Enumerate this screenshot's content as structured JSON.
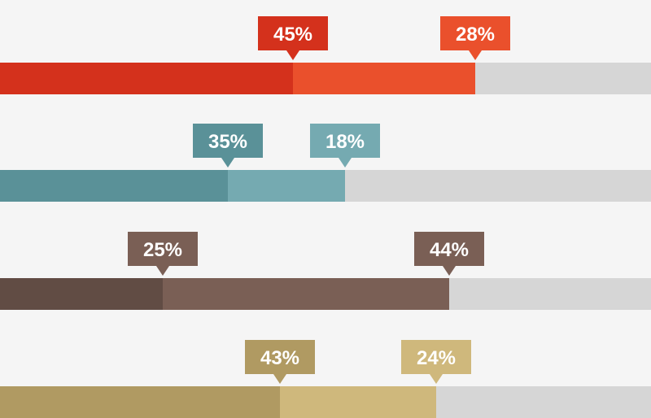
{
  "chart_data": {
    "type": "bar",
    "orientation": "horizontal",
    "stacked": true,
    "value_unit": "%",
    "xlim": [
      0,
      100
    ],
    "grid": false,
    "legend": "none",
    "rows": [
      {
        "segments": [
          {
            "value": 45,
            "label": "45%",
            "color": "#d4311c",
            "tag_color": "#d4311c"
          },
          {
            "value": 28,
            "label": "28%",
            "color": "#ea502c",
            "tag_color": "#ea502c"
          }
        ],
        "remainder_color": "#d6d6d6"
      },
      {
        "segments": [
          {
            "value": 35,
            "label": "35%",
            "color": "#5a9198",
            "tag_color": "#5a9198"
          },
          {
            "value": 18,
            "label": "18%",
            "color": "#75aab1",
            "tag_color": "#75aab1"
          }
        ],
        "remainder_color": "#d6d6d6"
      },
      {
        "segments": [
          {
            "value": 25,
            "label": "25%",
            "color": "#614c44",
            "tag_color": "#7a5f55"
          },
          {
            "value": 44,
            "label": "44%",
            "color": "#7a5f55",
            "tag_color": "#7a5f55"
          }
        ],
        "remainder_color": "#d6d6d6"
      },
      {
        "segments": [
          {
            "value": 43,
            "label": "43%",
            "color": "#b09a62",
            "tag_color": "#b09a62"
          },
          {
            "value": 24,
            "label": "24%",
            "color": "#cfb87c",
            "tag_color": "#cfb87c"
          }
        ],
        "remainder_color": "#d6d6d6"
      }
    ]
  },
  "colors": {
    "background": "#f5f5f5",
    "track": "#d6d6d6",
    "tag_text": "#ffffff"
  }
}
